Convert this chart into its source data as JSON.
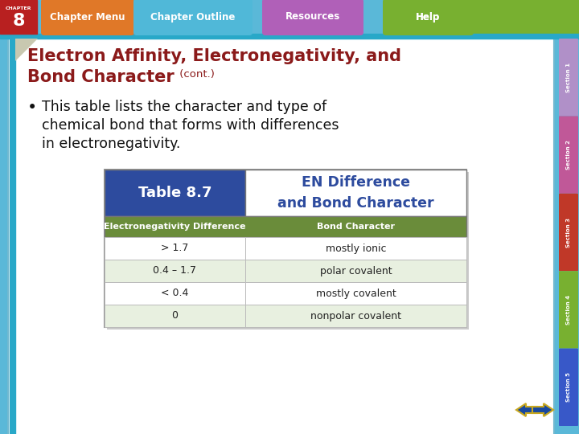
{
  "bg_color": "#5ab8d8",
  "slide_bg": "#ffffff",
  "title_text1": "Electron Affinity, Electronegativity, and",
  "title_text2": "Bond Character",
  "title_cont": " (cont.)",
  "title_color": "#8B1A1A",
  "bullet_text_lines": [
    "This table lists the character and type of",
    "chemical bond that forms with differences",
    "in electronegativity."
  ],
  "bullet_color": "#111111",
  "navbar_bg": "#5ab8d8",
  "nav_items": [
    "Chapter Menu",
    "Chapter Outline",
    "Resources",
    "Help"
  ],
  "nav_colors": [
    "#e07828",
    "#50b8d8",
    "#b060b8",
    "#78b030"
  ],
  "chapter_box_color": "#b82020",
  "chapter_num": "8",
  "chapter_label": "CHAPTER",
  "table_header_left_bg": "#2d4b9e",
  "table_header_left_text": "Table 8.7",
  "table_header_right_text": "EN Difference\nand Bond Character",
  "table_header_right_color": "#2d4b9e",
  "table_col_header_bg": "#6a8c3a",
  "table_col1_header": "Electronegativity Difference",
  "table_col2_header": "Bond Character",
  "table_row_odd_bg": "#ffffff",
  "table_row_even_bg": "#e8f0e0",
  "table_data": [
    [
      "> 1.7",
      "mostly ionic"
    ],
    [
      "0.4 – 1.7",
      "polar covalent"
    ],
    [
      "< 0.4",
      "mostly covalent"
    ],
    [
      "0",
      "nonpolar covalent"
    ]
  ],
  "side_tab_labels": [
    "Section 1",
    "Section 2",
    "Section 3",
    "Section 4",
    "Section 5"
  ],
  "side_tab_colors": [
    "#b090c8",
    "#c05898",
    "#c03828",
    "#78b030",
    "#3858c8"
  ],
  "arrow_color": "#1848a0",
  "arrow_outline": "#c8a820"
}
